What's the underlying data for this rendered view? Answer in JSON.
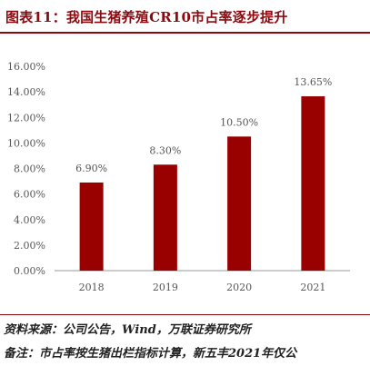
{
  "title": "图表11：我国生猪养殖CR10市占率逐步提升",
  "source": "资料来源：公司公告，Wind，万联证券研究所",
  "note": "备注：市占率按生猪出栏指标计算，新五丰2021年仅公",
  "colors": {
    "accent": "#8b0a10",
    "bar": "#990000",
    "axis_text": "#555555"
  },
  "chart_data": {
    "type": "bar",
    "title": "",
    "xlabel": "",
    "ylabel": "",
    "categories": [
      "2018",
      "2019",
      "2020",
      "2021"
    ],
    "values": [
      6.9,
      8.3,
      10.5,
      13.65
    ],
    "value_labels": [
      "6.90%",
      "8.30%",
      "10.50%",
      "13.65%"
    ],
    "ylim": [
      0,
      16
    ],
    "yticks": [
      0,
      2,
      4,
      6,
      8,
      10,
      12,
      14,
      16
    ],
    "ytick_labels": [
      "0.00%",
      "2.00%",
      "4.00%",
      "6.00%",
      "8.00%",
      "10.00%",
      "12.00%",
      "14.00%",
      "16.00%"
    ],
    "grid": false,
    "legend": "none"
  }
}
